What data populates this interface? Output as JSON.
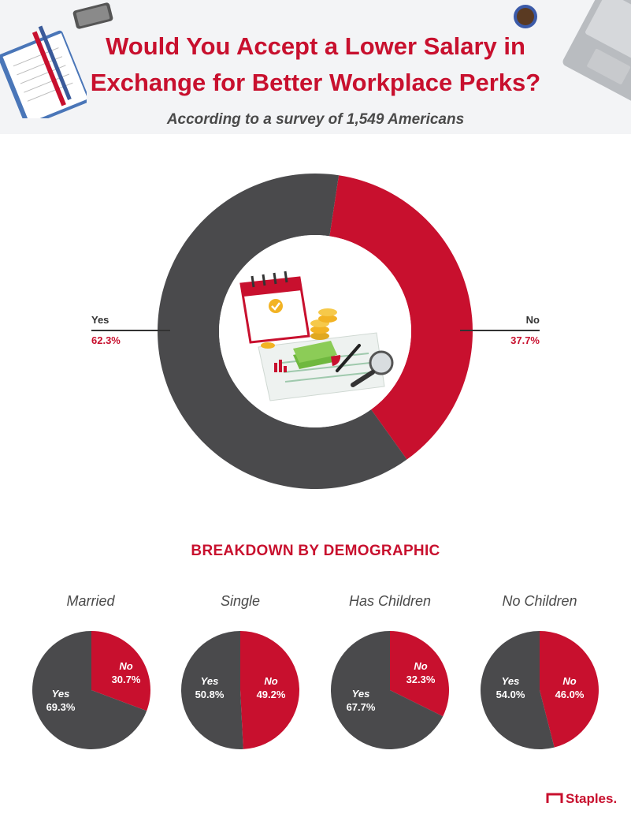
{
  "header": {
    "title_line1": "Would You Accept a Lower Salary in",
    "title_line2": "Exchange for Better Workplace Perks?",
    "subtitle": "According to a survey of 1,549 Americans"
  },
  "colors": {
    "red": "#c8102e",
    "gray": "#4a4a4c"
  },
  "main_chart": {
    "yes_label": "Yes",
    "yes_value": "62.3%",
    "no_label": "No",
    "no_value": "37.7%"
  },
  "section": {
    "title": "BREAKDOWN BY DEMOGRAPHIC"
  },
  "demographics": [
    {
      "title": "Married",
      "yes_label": "Yes",
      "yes_value": "69.3%",
      "no_label": "No",
      "no_value": "30.7%"
    },
    {
      "title": "Single",
      "yes_label": "Yes",
      "yes_value": "50.8%",
      "no_label": "No",
      "no_value": "49.2%"
    },
    {
      "title": "Has Children",
      "yes_label": "Yes",
      "yes_value": "67.7%",
      "no_label": "No",
      "no_value": "32.3%"
    },
    {
      "title": "No Children",
      "yes_label": "Yes",
      "yes_value": "54.0%",
      "no_label": "No",
      "no_value": "46.0%"
    }
  ],
  "footer": {
    "logo_text": "Staples."
  },
  "chart_data": [
    {
      "type": "pie",
      "title": "Would You Accept a Lower Salary in Exchange for Better Workplace Perks?",
      "categories": [
        "Yes",
        "No"
      ],
      "values": [
        62.3,
        37.7
      ]
    },
    {
      "type": "pie",
      "title": "Married",
      "categories": [
        "Yes",
        "No"
      ],
      "values": [
        69.3,
        30.7
      ]
    },
    {
      "type": "pie",
      "title": "Single",
      "categories": [
        "Yes",
        "No"
      ],
      "values": [
        50.8,
        49.2
      ]
    },
    {
      "type": "pie",
      "title": "Has Children",
      "categories": [
        "Yes",
        "No"
      ],
      "values": [
        67.7,
        32.3
      ]
    },
    {
      "type": "pie",
      "title": "No Children",
      "categories": [
        "Yes",
        "No"
      ],
      "values": [
        54.0,
        46.0
      ]
    }
  ]
}
